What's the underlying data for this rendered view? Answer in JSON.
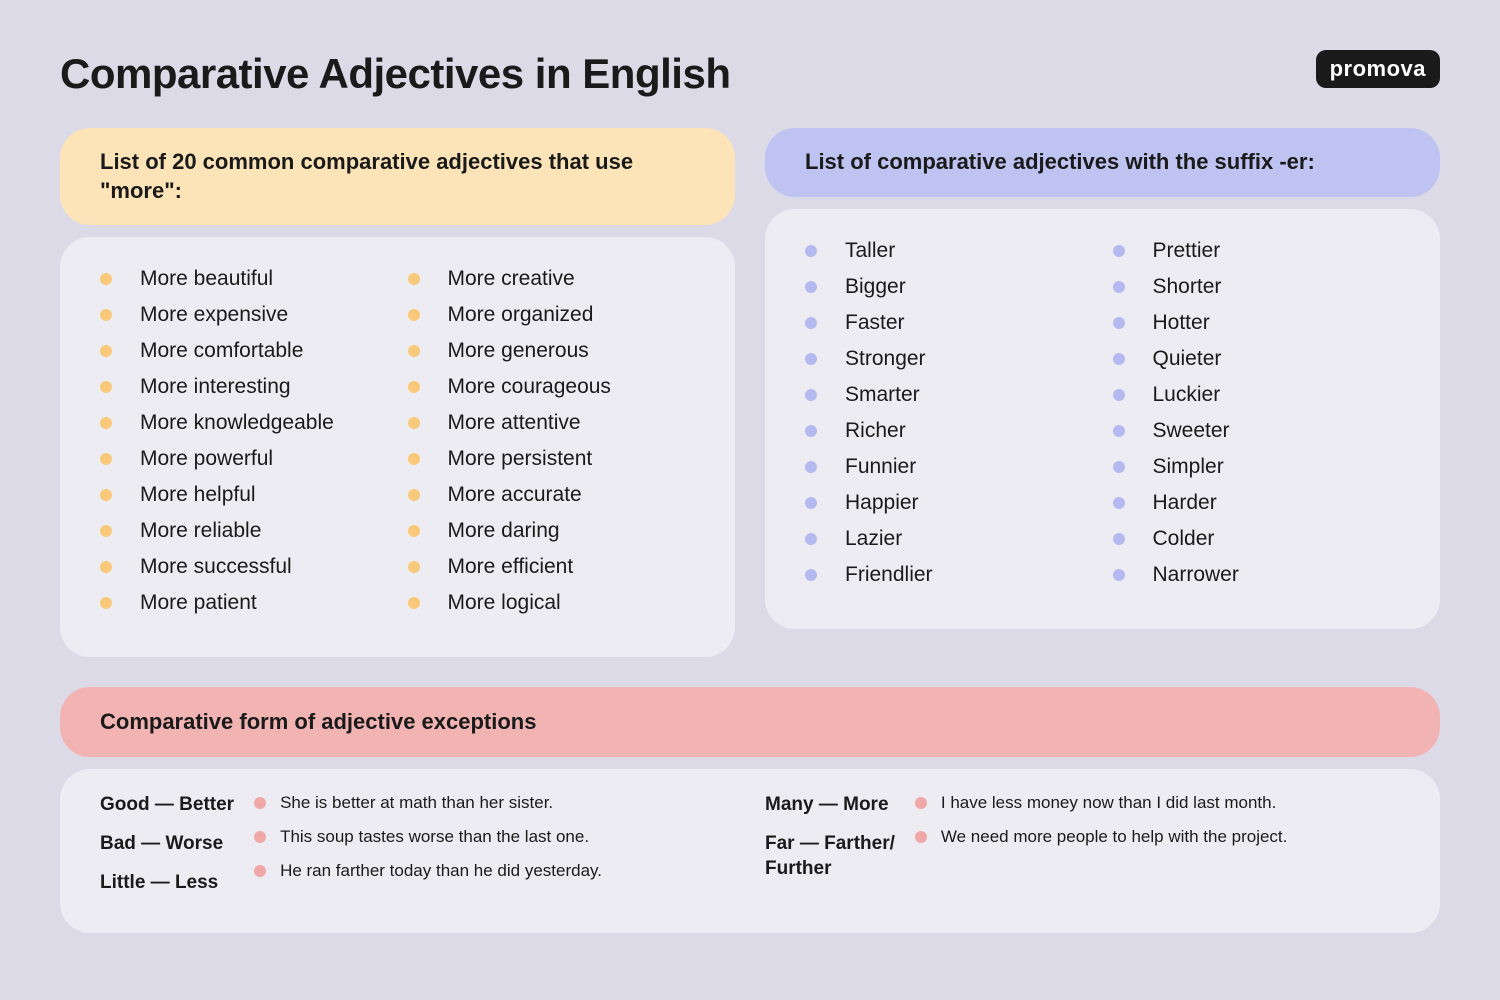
{
  "title": "Comparative Adjectives in English",
  "logo": "promova",
  "colors": {
    "bg": "#dcdae7",
    "body_bg": "#eeecf3",
    "orange_header": "#fde4b8",
    "orange_bullet": "#f9c97a",
    "blue_header": "#bec3f2",
    "blue_bullet": "#b4baf0",
    "pink_header": "#f2b3b3",
    "pink_bullet": "#f0a7a7",
    "text": "#1a1a1a"
  },
  "more_panel": {
    "header": "List of 20 common comparative adjectives that use \"more\":",
    "col1": [
      "More beautiful",
      "More expensive",
      "More comfortable",
      "More interesting",
      "More knowledgeable",
      "More powerful",
      "More helpful",
      "More reliable",
      "More successful",
      "More patient"
    ],
    "col2": [
      "More creative",
      "More organized",
      "More generous",
      "More courageous",
      "More attentive",
      "More persistent",
      "More accurate",
      "More daring",
      "More efficient",
      "More logical"
    ]
  },
  "er_panel": {
    "header": "List of comparative adjectives with the suffix -er:",
    "col1": [
      "Taller",
      "Bigger",
      "Faster",
      "Stronger",
      "Smarter",
      "Richer",
      "Funnier",
      "Happier",
      "Lazier",
      "Friendlier"
    ],
    "col2": [
      "Prettier",
      "Shorter",
      "Hotter",
      "Quieter",
      "Luckier",
      "Sweeter",
      "Simpler",
      "Harder",
      "Colder",
      "Narrower"
    ]
  },
  "exceptions": {
    "header": "Comparative form of adjective exceptions",
    "left_labels": [
      "Good — Better",
      "Bad — Worse",
      "Little — Less"
    ],
    "left_examples": [
      "She is better at math than her sister.",
      "This soup tastes worse than the last one.",
      "He ran farther today than he did yesterday."
    ],
    "right_labels": [
      "Many — More",
      "Far — Farther/\nFurther"
    ],
    "right_examples": [
      "I have less money now than I did last month.",
      "We need more people to help with the project."
    ]
  }
}
